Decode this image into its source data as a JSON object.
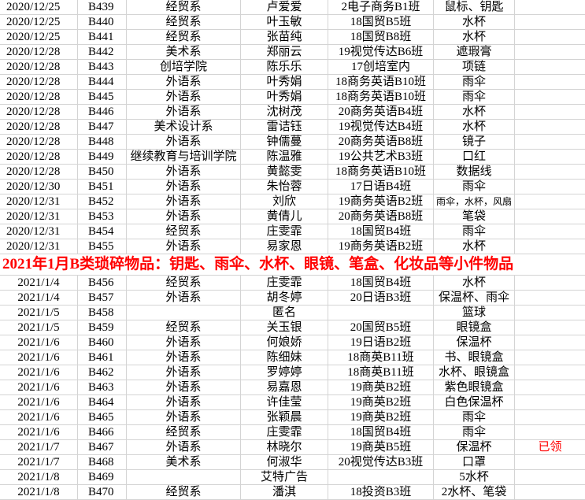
{
  "section1": [
    [
      "2020/12/25",
      "B439",
      "经贸系",
      "卢爱爱",
      "2电子商务B1班",
      "鼠标、钥匙",
      ""
    ],
    [
      "2020/12/25",
      "B440",
      "经贸系",
      "叶玉敏",
      "18国贸B5班",
      "水杯",
      ""
    ],
    [
      "2020/12/25",
      "B441",
      "经贸系",
      "张苗纯",
      "18国贸B8班",
      "水杯",
      ""
    ],
    [
      "2020/12/28",
      "B442",
      "美术系",
      "郑丽云",
      "19视觉传达B6班",
      "遮瑕膏",
      ""
    ],
    [
      "2020/12/28",
      "B443",
      "创培学院",
      "陈乐乐",
      "17创培室内",
      "项链",
      ""
    ],
    [
      "2020/12/28",
      "B444",
      "外语系",
      "叶秀娟",
      "18商务英语B10班",
      "雨伞",
      ""
    ],
    [
      "2020/12/28",
      "B445",
      "外语系",
      "叶秀娟",
      "18商务英语B10班",
      "雨伞",
      ""
    ],
    [
      "2020/12/28",
      "B446",
      "外语系",
      "沈树茂",
      "20商务英语B4班",
      "水杯",
      ""
    ],
    [
      "2020/12/28",
      "B447",
      "美术设计系",
      "雷诘钰",
      "19视觉传达B4班",
      "水杯",
      ""
    ],
    [
      "2020/12/28",
      "B448",
      "外语系",
      "钟儒蔓",
      "20商务英语B8班",
      "镜子",
      ""
    ],
    [
      "2020/12/28",
      "B449",
      "继续教育与培训学院",
      "陈温雅",
      "19公共艺术B3班",
      "口红",
      ""
    ],
    [
      "2020/12/28",
      "B450",
      "外语系",
      "黄懿雯",
      "18商务英语B10班",
      "数据线",
      ""
    ],
    [
      "2020/12/30",
      "B451",
      "外语系",
      "朱怡蓉",
      "17日语B4班",
      "雨伞",
      ""
    ],
    [
      "2020/12/31",
      "B452",
      "外语系",
      "刘欣",
      "19商务英语B2班",
      "雨伞，水杯，风扇",
      ""
    ],
    [
      "2020/12/31",
      "B453",
      "外语系",
      "黄倩儿",
      "20商务英语B8班",
      "笔袋",
      ""
    ],
    [
      "2020/12/31",
      "B454",
      "经贸系",
      "庄雯霏",
      "18国贸B4班",
      "雨伞",
      ""
    ],
    [
      "2020/12/31",
      "B455",
      "外语系",
      "易家恩",
      "19商务英语B2班",
      "水杯",
      ""
    ]
  ],
  "section_header": "2021年1月B类琐碎物品：钥匙、雨伞、水杯、眼镜、笔盒、化妆品等小件物品",
  "section2": [
    [
      "2021/1/4",
      "B456",
      "经贸系",
      "庄雯霏",
      "18国贸B4班",
      "水杯",
      ""
    ],
    [
      "2021/1/4",
      "B457",
      "外语系",
      "胡冬婷",
      "20日语B3班",
      "保温杯、雨伞",
      ""
    ],
    [
      "2021/1/5",
      "B458",
      "",
      "匿名",
      "",
      "篮球",
      ""
    ],
    [
      "2021/1/5",
      "B459",
      "经贸系",
      "关玉银",
      "20国贸B5班",
      "眼镜盒",
      ""
    ],
    [
      "2021/1/6",
      "B460",
      "外语系",
      "何娘娇",
      "19日语B2班",
      "保温杯",
      ""
    ],
    [
      "2021/1/6",
      "B461",
      "外语系",
      "陈细妹",
      "18商英B11班",
      "书、眼镜盒",
      ""
    ],
    [
      "2021/1/6",
      "B462",
      "外语系",
      "罗婷婷",
      "18商英B11班",
      "水杯、眼镜盒",
      ""
    ],
    [
      "2021/1/6",
      "B463",
      "外语系",
      "易嘉恩",
      "19商英B2班",
      "紫色眼镜盒",
      ""
    ],
    [
      "2021/1/6",
      "B464",
      "外语系",
      "许佳莹",
      "19商英B2班",
      "白色保温杯",
      ""
    ],
    [
      "2021/1/6",
      "B465",
      "外语系",
      "张颖晨",
      "19商英B2班",
      "雨伞",
      ""
    ],
    [
      "2021/1/6",
      "B466",
      "经贸系",
      "庄雯霏",
      "18国贸B4班",
      "雨伞",
      ""
    ],
    [
      "2021/1/7",
      "B467",
      "外语系",
      "林晓尔",
      "19商英B5班",
      "保温杯",
      "已领"
    ],
    [
      "2021/1/7",
      "B468",
      "美术系",
      "何淑华",
      "20视觉传达B3班",
      "口罩",
      ""
    ],
    [
      "2021/1/8",
      "B469",
      "",
      "艾特广告",
      "",
      "5水杯",
      ""
    ],
    [
      "2021/1/8",
      "B470",
      "经贸系",
      "潘淇",
      "18投资B3班",
      "2水杯、笔袋",
      ""
    ]
  ],
  "colors": {
    "header": "#ff0000",
    "note": "#ff0000",
    "grid": "#d4d4d4"
  }
}
